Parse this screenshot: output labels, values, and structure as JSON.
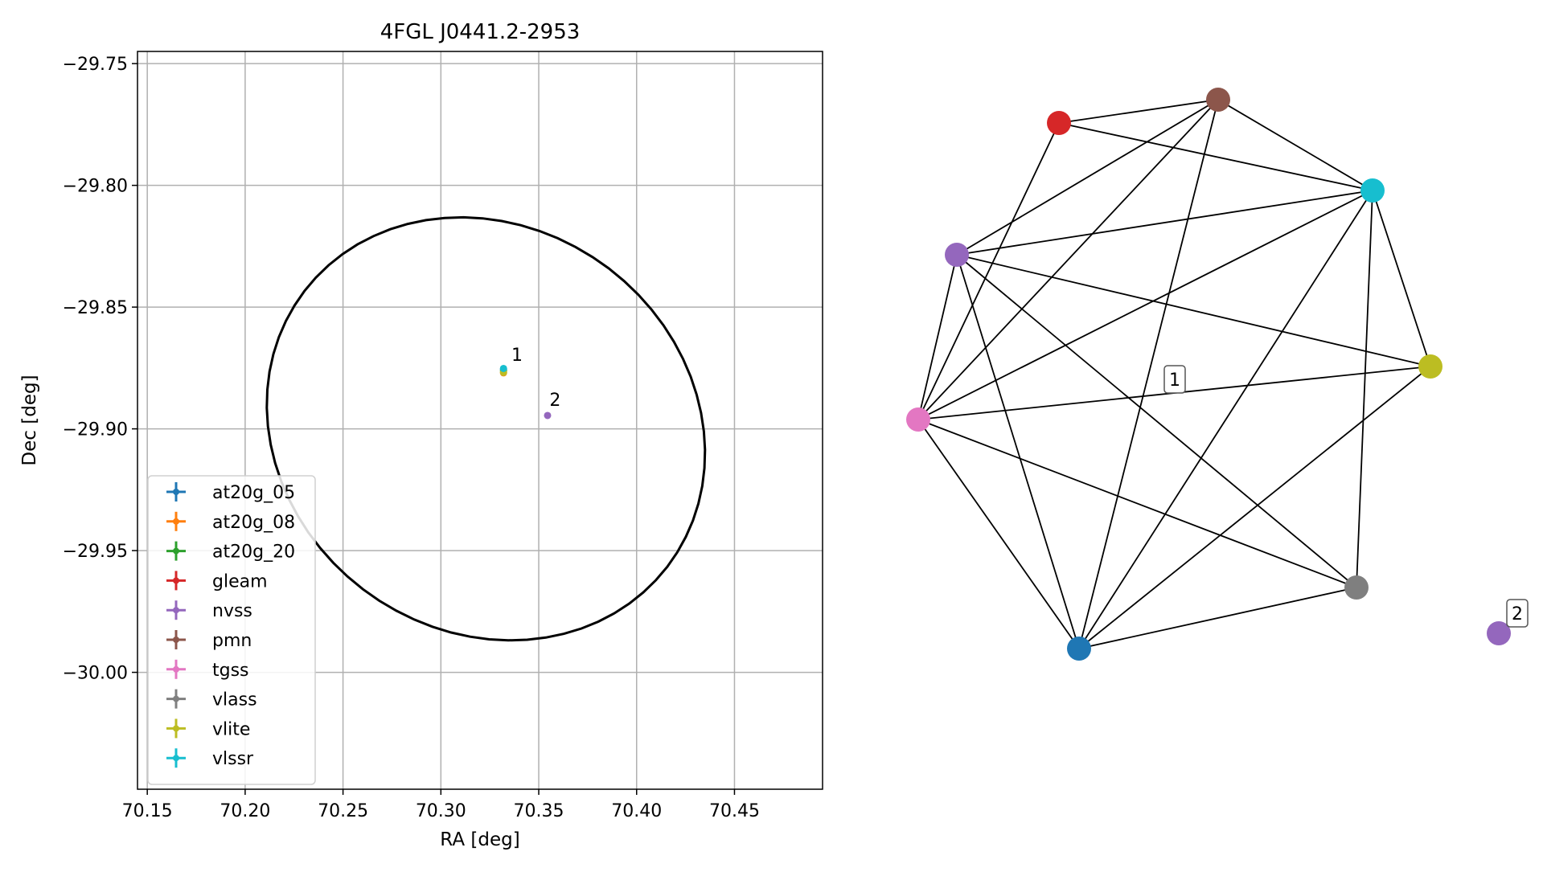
{
  "chart_data": [
    {
      "type": "scatter",
      "title": "4FGL J0441.2-2953",
      "xlabel": "RA [deg]",
      "ylabel": "Dec [deg]",
      "xlim": [
        70.145,
        70.495
      ],
      "ylim": [
        -30.048,
        -29.745
      ],
      "xticks": [
        {
          "v": 70.15,
          "label": "70.15"
        },
        {
          "v": 70.2,
          "label": "70.20"
        },
        {
          "v": 70.25,
          "label": "70.25"
        },
        {
          "v": 70.3,
          "label": "70.30"
        },
        {
          "v": 70.35,
          "label": "70.35"
        },
        {
          "v": 70.4,
          "label": "70.40"
        },
        {
          "v": 70.45,
          "label": "70.45"
        }
      ],
      "yticks": [
        {
          "v": -29.75,
          "label": "−29.75"
        },
        {
          "v": -29.8,
          "label": "−29.80"
        },
        {
          "v": -29.85,
          "label": "−29.85"
        },
        {
          "v": -29.9,
          "label": "−29.90"
        },
        {
          "v": -29.95,
          "label": "−29.95"
        },
        {
          "v": -30.0,
          "label": "−30.00"
        }
      ],
      "grid": true,
      "legend_placement": "lower-left",
      "ellipse": {
        "center": [
          70.323,
          -29.9
        ],
        "semi_x": 0.113,
        "semi_y": 0.0855,
        "tilt_deg": -12,
        "color": "#000000"
      },
      "series": [
        {
          "name": "at20g_05",
          "color": "#1f77b4",
          "points": [
            {
              "x": 70.332,
              "y": -29.8755
            }
          ]
        },
        {
          "name": "at20g_08",
          "color": "#ff7f0e",
          "points": [
            {
              "x": 70.332,
              "y": -29.877
            }
          ]
        },
        {
          "name": "at20g_20",
          "color": "#2ca02c",
          "points": [
            {
              "x": 70.332,
              "y": -29.8762
            }
          ]
        },
        {
          "name": "gleam",
          "color": "#d62728",
          "points": []
        },
        {
          "name": "nvss",
          "color": "#9467bd",
          "points": [
            {
              "x": 70.3545,
              "y": -29.8945
            }
          ]
        },
        {
          "name": "pmn",
          "color": "#8c564b",
          "points": []
        },
        {
          "name": "tgss",
          "color": "#e377c2",
          "points": []
        },
        {
          "name": "vlass",
          "color": "#7f7f7f",
          "points": []
        },
        {
          "name": "vlite",
          "color": "#bcbd22",
          "points": [
            {
              "x": 70.332,
              "y": -29.8768
            }
          ]
        },
        {
          "name": "vlssr",
          "color": "#17becf",
          "points": [
            {
              "x": 70.332,
              "y": -29.8752
            }
          ]
        }
      ],
      "annotations": [
        {
          "label": "1",
          "x": 70.336,
          "y": -29.872
        },
        {
          "label": "2",
          "x": 70.3555,
          "y": -29.8905
        }
      ]
    },
    {
      "type": "network",
      "nodes": [
        {
          "id": "red",
          "color": "#d62728"
        },
        {
          "id": "brown",
          "color": "#8c564b"
        },
        {
          "id": "cyan",
          "color": "#17becf"
        },
        {
          "id": "purple",
          "color": "#9467bd"
        },
        {
          "id": "olive",
          "color": "#bcbd22"
        },
        {
          "id": "pink",
          "color": "#e377c2"
        },
        {
          "id": "gray",
          "color": "#7f7f7f"
        },
        {
          "id": "blue",
          "color": "#1f77b4"
        },
        {
          "id": "purple2",
          "color": "#9467bd"
        }
      ],
      "edges": [
        [
          "red",
          "brown"
        ],
        [
          "red",
          "cyan"
        ],
        [
          "red",
          "pink"
        ],
        [
          "brown",
          "cyan"
        ],
        [
          "brown",
          "purple"
        ],
        [
          "brown",
          "pink"
        ],
        [
          "brown",
          "blue"
        ],
        [
          "cyan",
          "purple"
        ],
        [
          "cyan",
          "pink"
        ],
        [
          "cyan",
          "olive"
        ],
        [
          "cyan",
          "gray"
        ],
        [
          "cyan",
          "blue"
        ],
        [
          "purple",
          "pink"
        ],
        [
          "purple",
          "olive"
        ],
        [
          "purple",
          "gray"
        ],
        [
          "purple",
          "blue"
        ],
        [
          "olive",
          "pink"
        ],
        [
          "olive",
          "blue"
        ],
        [
          "pink",
          "gray"
        ],
        [
          "pink",
          "blue"
        ],
        [
          "gray",
          "blue"
        ]
      ],
      "labels": [
        {
          "text": "1"
        },
        {
          "text": "2"
        }
      ]
    }
  ]
}
